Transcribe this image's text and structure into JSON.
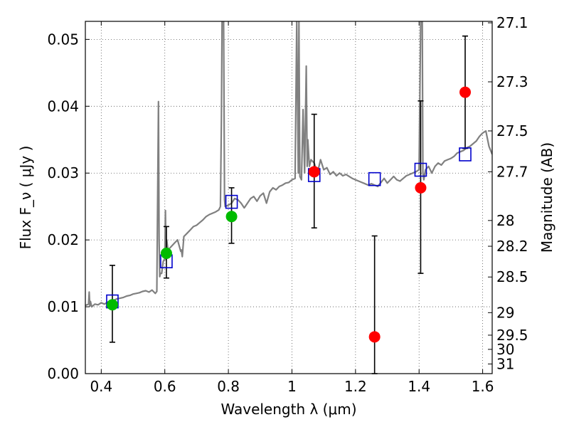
{
  "chart_data": {
    "type": "scatter",
    "title": "",
    "xlabel": "Wavelength  λ (μm)",
    "ylabel": "Flux  F_ν  ( μJy )",
    "ylabel_right": "Magnitude (AB)",
    "xlim": [
      0.35,
      1.63
    ],
    "ylim": [
      0.0,
      0.0527
    ],
    "grid": true,
    "x_ticks": [
      0.4,
      0.6,
      0.8,
      1.0,
      1.2,
      1.4,
      1.6
    ],
    "x_tick_labels": [
      "0.4",
      "0.6",
      "0.8",
      "1",
      "1.2",
      "1.4",
      "1.6"
    ],
    "y_ticks": [
      0.0,
      0.01,
      0.02,
      0.03,
      0.04,
      0.05
    ],
    "y_tick_labels": [
      "0.00",
      "0.01",
      "0.02",
      "0.03",
      "0.04",
      "0.05"
    ],
    "right_axis_ticks": [
      {
        "mag": 27.1,
        "label": "27.1"
      },
      {
        "mag": 27.3,
        "label": "27.3"
      },
      {
        "mag": 27.5,
        "label": "27.5"
      },
      {
        "mag": 27.7,
        "label": "27.7"
      },
      {
        "mag": 28.0,
        "label": "28"
      },
      {
        "mag": 28.2,
        "label": "28.2"
      },
      {
        "mag": 28.5,
        "label": "28.5"
      },
      {
        "mag": 29.0,
        "label": "29"
      },
      {
        "mag": 29.5,
        "label": "29.5"
      },
      {
        "mag": 30.0,
        "label": "30"
      },
      {
        "mag": 31.0,
        "label": "31"
      }
    ],
    "colors": {
      "spectrum": "#808080",
      "model": "#0000cc",
      "observed_green": "#00bb00",
      "observed_red": "#ff0000",
      "errorbar": "#000000",
      "grid": "#555555"
    },
    "spectrum": {
      "x": [
        0.35,
        0.36,
        0.362,
        0.364,
        0.366,
        0.37,
        0.38,
        0.39,
        0.4,
        0.41,
        0.42,
        0.43,
        0.44,
        0.45,
        0.46,
        0.47,
        0.48,
        0.49,
        0.5,
        0.51,
        0.52,
        0.53,
        0.54,
        0.55,
        0.56,
        0.57,
        0.575,
        0.58,
        0.582,
        0.584,
        0.586,
        0.59,
        0.595,
        0.6,
        0.602,
        0.604,
        0.606,
        0.61,
        0.62,
        0.63,
        0.64,
        0.65,
        0.652,
        0.655,
        0.66,
        0.67,
        0.68,
        0.69,
        0.7,
        0.71,
        0.72,
        0.73,
        0.74,
        0.75,
        0.76,
        0.77,
        0.775,
        0.778,
        0.78,
        0.785,
        0.788,
        0.79,
        0.8,
        0.81,
        0.82,
        0.83,
        0.84,
        0.85,
        0.86,
        0.87,
        0.88,
        0.89,
        0.9,
        0.91,
        0.92,
        0.93,
        0.94,
        0.95,
        0.96,
        0.97,
        0.98,
        0.99,
        1.0,
        1.01,
        1.015,
        1.02,
        1.022,
        1.025,
        1.03,
        1.035,
        1.04,
        1.045,
        1.048,
        1.05,
        1.055,
        1.06,
        1.07,
        1.08,
        1.09,
        1.1,
        1.11,
        1.12,
        1.13,
        1.14,
        1.15,
        1.16,
        1.17,
        1.18,
        1.19,
        1.2,
        1.21,
        1.22,
        1.23,
        1.24,
        1.25,
        1.26,
        1.27,
        1.28,
        1.29,
        1.3,
        1.31,
        1.32,
        1.33,
        1.34,
        1.35,
        1.36,
        1.37,
        1.38,
        1.39,
        1.4,
        1.405,
        1.41,
        1.412,
        1.415,
        1.42,
        1.43,
        1.44,
        1.45,
        1.46,
        1.47,
        1.48,
        1.49,
        1.5,
        1.51,
        1.52,
        1.53,
        1.54,
        1.55,
        1.56,
        1.57,
        1.58,
        1.59,
        1.6,
        1.61,
        1.62,
        1.63
      ],
      "y": [
        0.0102,
        0.0104,
        0.0122,
        0.0101,
        0.0108,
        0.01,
        0.0104,
        0.0103,
        0.0106,
        0.0104,
        0.0107,
        0.0108,
        0.011,
        0.0112,
        0.0113,
        0.0114,
        0.0116,
        0.0117,
        0.0119,
        0.012,
        0.0121,
        0.0123,
        0.0124,
        0.0122,
        0.0125,
        0.012,
        0.0123,
        0.0407,
        0.02,
        0.0145,
        0.015,
        0.015,
        0.0168,
        0.0172,
        0.0244,
        0.017,
        0.02,
        0.0185,
        0.019,
        0.0195,
        0.02,
        0.0183,
        0.0185,
        0.0175,
        0.0205,
        0.021,
        0.0215,
        0.022,
        0.0222,
        0.0226,
        0.023,
        0.0235,
        0.0238,
        0.024,
        0.0242,
        0.0245,
        0.025,
        0.038,
        0.0527,
        0.0527,
        0.026,
        0.025,
        0.0252,
        0.0255,
        0.0262,
        0.026,
        0.0255,
        0.0248,
        0.0255,
        0.0262,
        0.0265,
        0.0258,
        0.0266,
        0.027,
        0.0255,
        0.0272,
        0.0278,
        0.0275,
        0.028,
        0.0282,
        0.0285,
        0.0286,
        0.029,
        0.0292,
        0.0527,
        0.03,
        0.0527,
        0.0295,
        0.029,
        0.0395,
        0.03,
        0.046,
        0.031,
        0.035,
        0.031,
        0.032,
        0.0315,
        0.03,
        0.032,
        0.0305,
        0.0308,
        0.0298,
        0.0302,
        0.0296,
        0.03,
        0.0296,
        0.0298,
        0.0295,
        0.0292,
        0.029,
        0.0288,
        0.0286,
        0.0284,
        0.0282,
        0.0284,
        0.0282,
        0.028,
        0.0286,
        0.0292,
        0.0285,
        0.029,
        0.0295,
        0.029,
        0.0288,
        0.0292,
        0.0296,
        0.0298,
        0.03,
        0.0302,
        0.0305,
        0.0527,
        0.0527,
        0.03,
        0.029,
        0.0305,
        0.031,
        0.03,
        0.031,
        0.0315,
        0.0312,
        0.0318,
        0.032,
        0.0322,
        0.0325,
        0.033,
        0.0332,
        0.0334,
        0.0338,
        0.034,
        0.0344,
        0.0348,
        0.0355,
        0.036,
        0.0363,
        0.034,
        0.0328
      ]
    },
    "model_points": {
      "x": [
        0.435,
        0.605,
        0.81,
        1.07,
        1.26,
        1.405,
        1.545
      ],
      "y": [
        0.0108,
        0.0168,
        0.0257,
        0.0297,
        0.0291,
        0.0305,
        0.0328
      ]
    },
    "observed_points": [
      {
        "x": 0.435,
        "y": 0.0103,
        "err_low": 0.0047,
        "err_high": 0.0162,
        "color": "green"
      },
      {
        "x": 0.605,
        "y": 0.018,
        "err_low": 0.0143,
        "err_high": 0.022,
        "color": "green"
      },
      {
        "x": 0.81,
        "y": 0.0235,
        "err_low": 0.0195,
        "err_high": 0.0278,
        "color": "green"
      },
      {
        "x": 1.07,
        "y": 0.0302,
        "err_low": 0.0218,
        "err_high": 0.0388,
        "color": "red"
      },
      {
        "x": 1.26,
        "y": 0.0055,
        "err_low": 0.0,
        "err_high": 0.0206,
        "color": "red"
      },
      {
        "x": 1.405,
        "y": 0.0278,
        "err_low": 0.015,
        "err_high": 0.0408,
        "color": "red"
      },
      {
        "x": 1.545,
        "y": 0.0421,
        "err_low": 0.0337,
        "err_high": 0.0505,
        "color": "red"
      }
    ]
  }
}
